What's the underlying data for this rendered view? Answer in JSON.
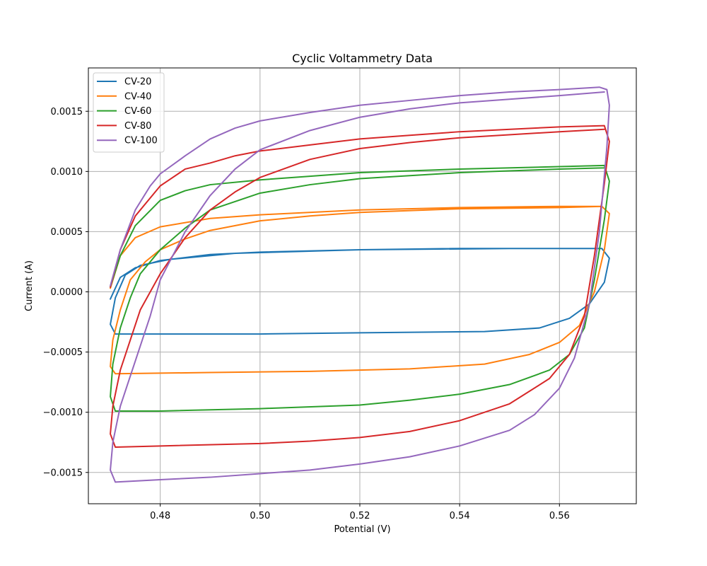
{
  "chart_data": {
    "type": "line",
    "title": "Cyclic Voltammetry Data",
    "xlabel": "Potential (V)",
    "ylabel": "Current (A)",
    "xlim": [
      0.4656,
      0.5754
    ],
    "ylim": [
      -0.00176,
      0.00186
    ],
    "xticks": [
      0.48,
      0.5,
      0.52,
      0.54,
      0.56
    ],
    "xtick_labels": [
      "0.48",
      "0.50",
      "0.52",
      "0.54",
      "0.56"
    ],
    "yticks": [
      -0.0015,
      -0.001,
      -0.0005,
      0.0,
      0.0005,
      0.001,
      0.0015
    ],
    "ytick_labels": [
      "−0.0015",
      "−0.0010",
      "−0.0005",
      "0.0000",
      "0.0005",
      "0.0010",
      "0.0015"
    ],
    "grid": true,
    "legend_position": "top-left",
    "series": [
      {
        "name": "CV-20",
        "color": "#1f77b4",
        "points": [
          [
            0.47,
            -6e-05
          ],
          [
            0.472,
            0.00012
          ],
          [
            0.475,
            0.0002
          ],
          [
            0.48,
            0.00026
          ],
          [
            0.49,
            0.00031
          ],
          [
            0.5,
            0.00033
          ],
          [
            0.52,
            0.00035
          ],
          [
            0.54,
            0.00036
          ],
          [
            0.56,
            0.00036
          ],
          [
            0.5685,
            0.00036
          ],
          [
            0.57,
            0.00028
          ],
          [
            0.569,
            8e-05
          ],
          [
            0.566,
            -0.0001
          ],
          [
            0.562,
            -0.00022
          ],
          [
            0.556,
            -0.0003
          ],
          [
            0.545,
            -0.00033
          ],
          [
            0.52,
            -0.00034
          ],
          [
            0.5,
            -0.00035
          ],
          [
            0.48,
            -0.00035
          ],
          [
            0.471,
            -0.00035
          ],
          [
            0.47,
            -0.00027
          ],
          [
            0.471,
            -5e-05
          ],
          [
            0.473,
            0.00014
          ],
          [
            0.476,
            0.00022
          ],
          [
            0.482,
            0.00027
          ],
          [
            0.495,
            0.00032
          ],
          [
            0.52,
            0.00035
          ],
          [
            0.55,
            0.00036
          ],
          [
            0.5685,
            0.00036
          ]
        ]
      },
      {
        "name": "CV-40",
        "color": "#ff7f0e",
        "points": [
          [
            0.47,
            3e-05
          ],
          [
            0.472,
            0.0003
          ],
          [
            0.475,
            0.00045
          ],
          [
            0.48,
            0.00054
          ],
          [
            0.49,
            0.00061
          ],
          [
            0.5,
            0.00064
          ],
          [
            0.52,
            0.00068
          ],
          [
            0.54,
            0.0007
          ],
          [
            0.56,
            0.00071
          ],
          [
            0.5685,
            0.00071
          ],
          [
            0.57,
            0.00065
          ],
          [
            0.569,
            0.00035
          ],
          [
            0.567,
            0.0
          ],
          [
            0.564,
            -0.00028
          ],
          [
            0.56,
            -0.00042
          ],
          [
            0.554,
            -0.00052
          ],
          [
            0.545,
            -0.0006
          ],
          [
            0.53,
            -0.00064
          ],
          [
            0.51,
            -0.00066
          ],
          [
            0.49,
            -0.00067
          ],
          [
            0.471,
            -0.00068
          ],
          [
            0.47,
            -0.00062
          ],
          [
            0.4705,
            -0.0004
          ],
          [
            0.472,
            -0.00015
          ],
          [
            0.474,
            0.0001
          ],
          [
            0.477,
            0.00025
          ],
          [
            0.48,
            0.00035
          ],
          [
            0.485,
            0.00044
          ],
          [
            0.49,
            0.00051
          ],
          [
            0.5,
            0.00059
          ],
          [
            0.51,
            0.00063
          ],
          [
            0.52,
            0.00066
          ],
          [
            0.54,
            0.00069
          ],
          [
            0.56,
            0.0007
          ],
          [
            0.5685,
            0.00071
          ]
        ]
      },
      {
        "name": "CV-60",
        "color": "#2ca02c",
        "points": [
          [
            0.47,
            4e-05
          ],
          [
            0.472,
            0.0003
          ],
          [
            0.475,
            0.00055
          ],
          [
            0.48,
            0.00076
          ],
          [
            0.485,
            0.00084
          ],
          [
            0.49,
            0.00089
          ],
          [
            0.5,
            0.00093
          ],
          [
            0.51,
            0.00096
          ],
          [
            0.52,
            0.00099
          ],
          [
            0.54,
            0.00102
          ],
          [
            0.56,
            0.00104
          ],
          [
            0.569,
            0.00105
          ],
          [
            0.57,
            0.00092
          ],
          [
            0.569,
            0.0006
          ],
          [
            0.567,
            0.0001
          ],
          [
            0.565,
            -0.0003
          ],
          [
            0.562,
            -0.00052
          ],
          [
            0.558,
            -0.00065
          ],
          [
            0.55,
            -0.00077
          ],
          [
            0.54,
            -0.00085
          ],
          [
            0.53,
            -0.0009
          ],
          [
            0.52,
            -0.00094
          ],
          [
            0.5,
            -0.00097
          ],
          [
            0.48,
            -0.00099
          ],
          [
            0.471,
            -0.00099
          ],
          [
            0.47,
            -0.00087
          ],
          [
            0.4705,
            -0.0006
          ],
          [
            0.472,
            -0.0003
          ],
          [
            0.474,
            -5e-05
          ],
          [
            0.476,
            0.00015
          ],
          [
            0.48,
            0.00035
          ],
          [
            0.485,
            0.00053
          ],
          [
            0.49,
            0.00068
          ],
          [
            0.5,
            0.00082
          ],
          [
            0.51,
            0.00089
          ],
          [
            0.52,
            0.00094
          ],
          [
            0.54,
            0.00099
          ],
          [
            0.56,
            0.00102
          ],
          [
            0.569,
            0.00103
          ]
        ]
      },
      {
        "name": "CV-80",
        "color": "#d62728",
        "points": [
          [
            0.47,
            4e-05
          ],
          [
            0.472,
            0.00035
          ],
          [
            0.475,
            0.00063
          ],
          [
            0.48,
            0.00088
          ],
          [
            0.485,
            0.00102
          ],
          [
            0.49,
            0.00107
          ],
          [
            0.495,
            0.00113
          ],
          [
            0.5,
            0.00117
          ],
          [
            0.51,
            0.00122
          ],
          [
            0.52,
            0.00127
          ],
          [
            0.53,
            0.0013
          ],
          [
            0.54,
            0.00133
          ],
          [
            0.56,
            0.00137
          ],
          [
            0.569,
            0.00138
          ],
          [
            0.57,
            0.00125
          ],
          [
            0.569,
            0.0009
          ],
          [
            0.567,
            0.0003
          ],
          [
            0.565,
            -0.0002
          ],
          [
            0.562,
            -0.00052
          ],
          [
            0.558,
            -0.00072
          ],
          [
            0.55,
            -0.00093
          ],
          [
            0.54,
            -0.00107
          ],
          [
            0.53,
            -0.00116
          ],
          [
            0.52,
            -0.00121
          ],
          [
            0.51,
            -0.00124
          ],
          [
            0.5,
            -0.00126
          ],
          [
            0.48,
            -0.00128
          ],
          [
            0.471,
            -0.00129
          ],
          [
            0.47,
            -0.00118
          ],
          [
            0.4705,
            -0.00095
          ],
          [
            0.472,
            -0.00065
          ],
          [
            0.474,
            -0.0004
          ],
          [
            0.476,
            -0.00015
          ],
          [
            0.48,
            0.00015
          ],
          [
            0.485,
            0.00045
          ],
          [
            0.49,
            0.00068
          ],
          [
            0.495,
            0.00083
          ],
          [
            0.5,
            0.00095
          ],
          [
            0.51,
            0.0011
          ],
          [
            0.52,
            0.00119
          ],
          [
            0.53,
            0.00124
          ],
          [
            0.54,
            0.00128
          ],
          [
            0.56,
            0.00133
          ],
          [
            0.569,
            0.00135
          ]
        ]
      },
      {
        "name": "CV-100",
        "color": "#9467bd",
        "points": [
          [
            0.47,
            5e-05
          ],
          [
            0.472,
            0.00035
          ],
          [
            0.475,
            0.00068
          ],
          [
            0.478,
            0.00088
          ],
          [
            0.48,
            0.00098
          ],
          [
            0.485,
            0.00113
          ],
          [
            0.49,
            0.00127
          ],
          [
            0.495,
            0.00136
          ],
          [
            0.5,
            0.00142
          ],
          [
            0.51,
            0.00149
          ],
          [
            0.52,
            0.00155
          ],
          [
            0.53,
            0.00159
          ],
          [
            0.54,
            0.00163
          ],
          [
            0.55,
            0.00166
          ],
          [
            0.56,
            0.00168
          ],
          [
            0.568,
            0.0017
          ],
          [
            0.5695,
            0.00168
          ],
          [
            0.57,
            0.00155
          ],
          [
            0.5695,
            0.0012
          ],
          [
            0.568,
            0.0005
          ],
          [
            0.566,
            -0.0001
          ],
          [
            0.563,
            -0.00055
          ],
          [
            0.56,
            -0.0008
          ],
          [
            0.555,
            -0.00102
          ],
          [
            0.55,
            -0.00115
          ],
          [
            0.54,
            -0.00128
          ],
          [
            0.53,
            -0.00137
          ],
          [
            0.52,
            -0.00143
          ],
          [
            0.51,
            -0.00148
          ],
          [
            0.5,
            -0.00151
          ],
          [
            0.49,
            -0.00154
          ],
          [
            0.48,
            -0.00156
          ],
          [
            0.471,
            -0.00158
          ],
          [
            0.47,
            -0.00148
          ],
          [
            0.4705,
            -0.00125
          ],
          [
            0.472,
            -0.00095
          ],
          [
            0.474,
            -0.0007
          ],
          [
            0.476,
            -0.00045
          ],
          [
            0.478,
            -0.0002
          ],
          [
            0.48,
            0.0001
          ],
          [
            0.485,
            0.0005
          ],
          [
            0.49,
            0.0008
          ],
          [
            0.495,
            0.00102
          ],
          [
            0.5,
            0.00118
          ],
          [
            0.51,
            0.00134
          ],
          [
            0.52,
            0.00145
          ],
          [
            0.53,
            0.00152
          ],
          [
            0.54,
            0.00157
          ],
          [
            0.55,
            0.0016
          ],
          [
            0.56,
            0.00163
          ],
          [
            0.569,
            0.00166
          ]
        ]
      }
    ]
  }
}
